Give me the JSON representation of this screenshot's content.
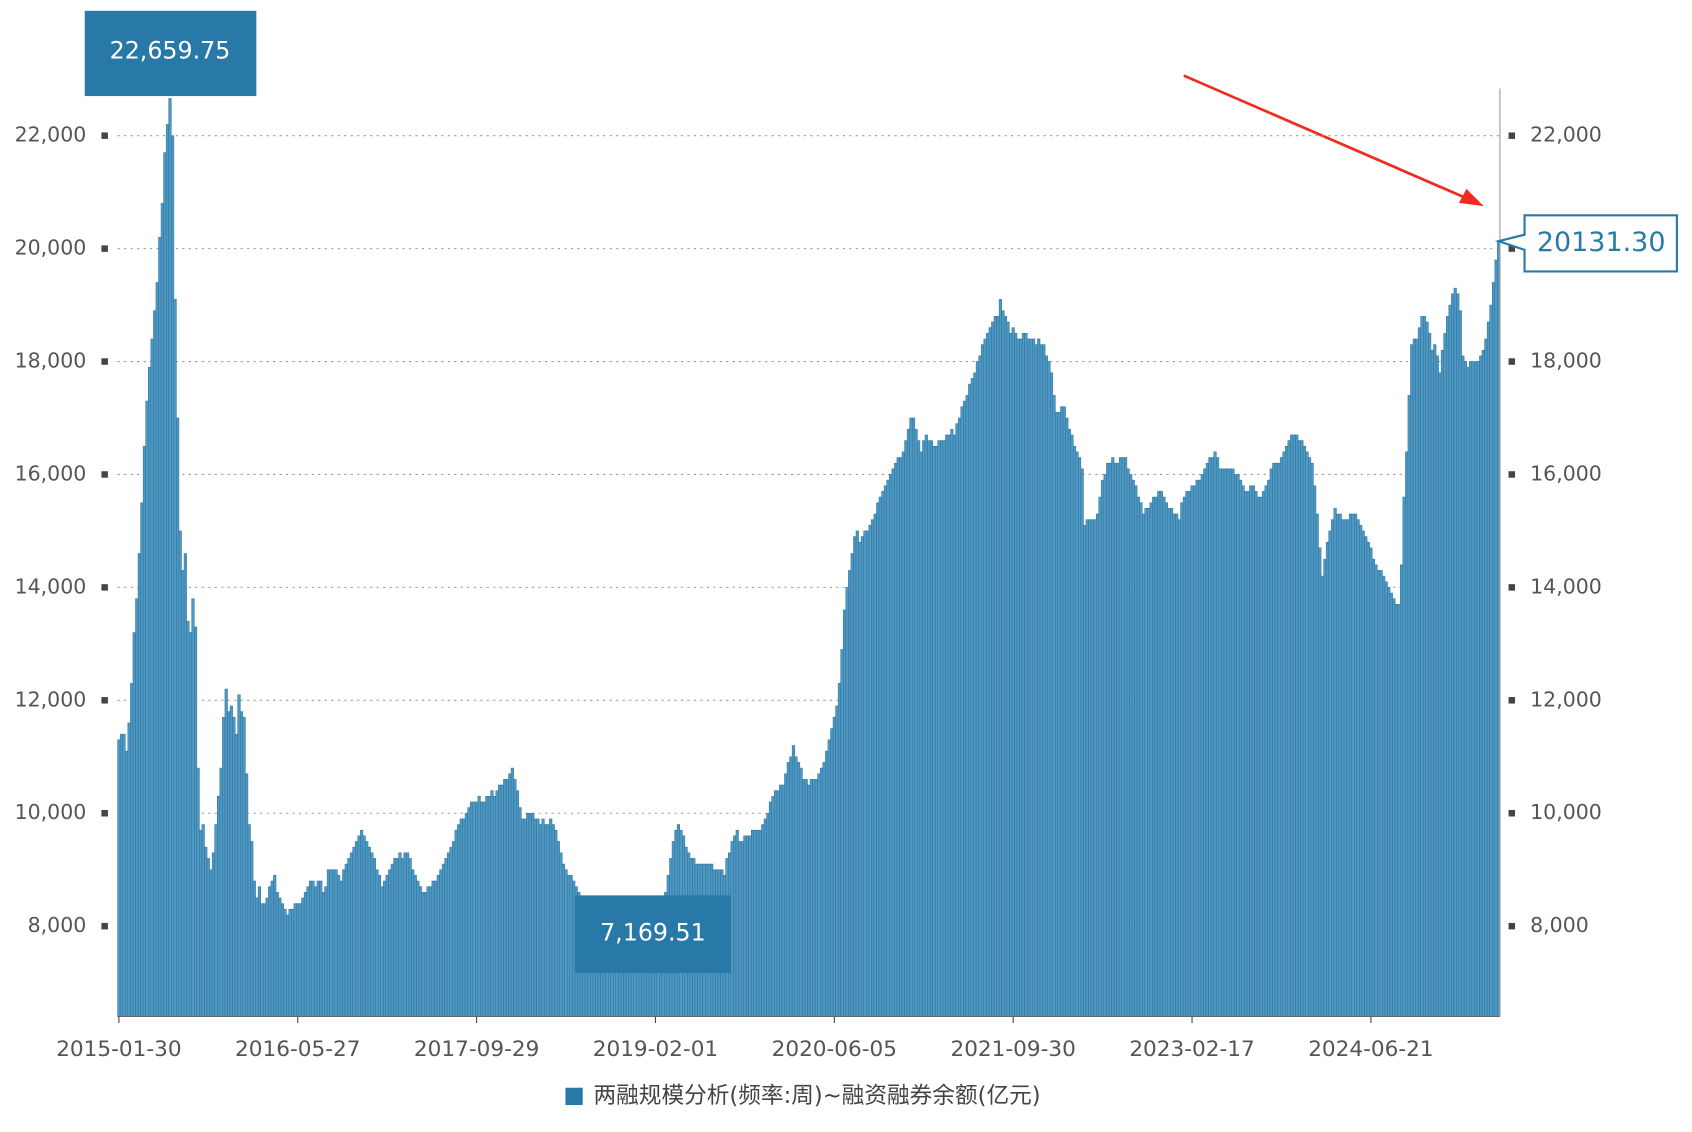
{
  "chart_data": {
    "type": "bar",
    "legend": "两融规模分析(频率:周)~融资融券余额(亿元)",
    "color": "#4f98c2",
    "ylim": [
      6400,
      23600
    ],
    "yticks": [
      {
        "value": 8000,
        "label": "8,000"
      },
      {
        "value": 10000,
        "label": "10,000"
      },
      {
        "value": 12000,
        "label": "12,000"
      },
      {
        "value": 14000,
        "label": "14,000"
      },
      {
        "value": 16000,
        "label": "16,000"
      },
      {
        "value": 18000,
        "label": "18,000"
      },
      {
        "value": 20000,
        "label": "20,000"
      },
      {
        "value": 22000,
        "label": "22,000"
      }
    ],
    "y2lim": [
      6400,
      23600
    ],
    "y2ticks": [
      {
        "value": 8000,
        "label": "8,000"
      },
      {
        "value": 10000,
        "label": "10,000"
      },
      {
        "value": 12000,
        "label": "12,000"
      },
      {
        "value": 14000,
        "label": "14,000"
      },
      {
        "value": 16000,
        "label": "16,000"
      },
      {
        "value": 18000,
        "label": "18,000"
      },
      {
        "value": 20000,
        "label": "20,000"
      },
      {
        "value": 22000,
        "label": "22,000"
      }
    ],
    "grid": true,
    "categories": [
      "2015-01-30",
      null,
      null,
      null,
      null,
      null,
      null,
      null,
      null,
      null,
      null,
      null,
      null,
      null,
      null,
      null,
      null,
      null,
      null,
      null,
      null,
      null,
      null,
      null,
      null,
      null,
      null,
      null,
      null,
      null,
      null,
      null,
      null,
      null,
      null,
      null,
      null,
      null,
      null,
      null,
      null,
      null,
      null,
      null,
      null,
      null,
      null,
      null,
      null,
      null,
      null,
      null,
      null,
      null,
      null,
      null,
      null,
      null,
      null,
      null,
      null,
      null,
      null,
      null,
      null,
      null,
      null,
      null,
      null,
      null,
      "2016-05-27",
      null,
      null,
      null,
      null,
      null,
      null,
      null,
      null,
      null,
      null,
      null,
      null,
      null,
      null,
      null,
      null,
      null,
      null,
      null,
      null,
      null,
      null,
      null,
      null,
      null,
      null,
      null,
      null,
      null,
      null,
      null,
      null,
      null,
      null,
      null,
      null,
      null,
      null,
      null,
      null,
      null,
      null,
      null,
      null,
      null,
      null,
      null,
      null,
      null,
      null,
      null,
      null,
      null,
      null,
      null,
      null,
      null,
      null,
      null,
      null,
      null,
      null,
      null,
      null,
      null,
      null,
      null,
      null,
      null,
      "2017-09-29",
      null,
      null,
      null,
      null,
      null,
      null,
      null,
      null,
      null,
      null,
      null,
      null,
      null,
      null,
      null,
      null,
      null,
      null,
      null,
      null,
      null,
      null,
      null,
      null,
      null,
      null,
      null,
      null,
      null,
      null,
      null,
      null,
      null,
      null,
      null,
      null,
      null,
      null,
      null,
      null,
      null,
      null,
      null,
      null,
      null,
      null,
      null,
      null,
      null,
      null,
      null,
      null,
      null,
      null,
      null,
      null,
      null,
      null,
      null,
      null,
      null,
      null,
      null,
      null,
      null,
      null,
      null,
      null,
      null,
      "2019-02-01",
      null,
      null,
      null,
      null,
      null,
      null,
      null,
      null,
      null,
      null,
      null,
      null,
      null,
      null,
      null,
      null,
      null,
      null,
      null,
      null,
      null,
      null,
      null,
      null,
      null,
      null,
      null,
      null,
      null,
      null,
      null,
      null,
      null,
      null,
      null,
      null,
      null,
      null,
      null,
      null,
      null,
      null,
      null,
      null,
      null,
      null,
      null,
      null,
      null,
      null,
      null,
      null,
      null,
      null,
      null,
      null,
      null,
      null,
      null,
      null,
      null,
      null,
      null,
      null,
      null,
      null,
      null,
      null,
      null,
      "2020-06-05",
      null,
      null,
      null,
      null,
      null,
      null,
      null,
      null,
      null,
      null,
      null,
      null,
      null,
      null,
      null,
      null,
      null,
      null,
      null,
      null,
      null,
      null,
      null,
      null,
      null,
      null,
      null,
      null,
      null,
      null,
      null,
      null,
      null,
      null,
      null,
      null,
      null,
      null,
      null,
      null,
      null,
      null,
      null,
      null,
      null,
      null,
      null,
      null,
      null,
      null,
      null,
      null,
      null,
      null,
      null,
      null,
      null,
      null,
      null,
      null,
      null,
      null,
      null,
      null,
      null,
      null,
      null,
      null,
      null,
      "2021-09-30",
      null,
      null,
      null,
      null,
      null,
      null,
      null,
      null,
      null,
      null,
      null,
      null,
      null,
      null,
      null,
      null,
      null,
      null,
      null,
      null,
      null,
      null,
      null,
      null,
      null,
      null,
      null,
      null,
      null,
      null,
      null,
      null,
      null,
      null,
      null,
      null,
      null,
      null,
      null,
      null,
      null,
      null,
      null,
      null,
      null,
      null,
      null,
      null,
      null,
      null,
      null,
      null,
      null,
      null,
      null,
      null,
      null,
      null,
      null,
      null,
      null,
      null,
      null,
      null,
      null,
      null,
      null,
      null,
      null,
      "2023-02-17",
      null,
      null,
      null,
      null,
      null,
      null,
      null,
      null,
      null,
      null,
      null,
      null,
      null,
      null,
      null,
      null,
      null,
      null,
      null,
      null,
      null,
      null,
      null,
      null,
      null,
      null,
      null,
      null,
      null,
      null,
      null,
      null,
      null,
      null,
      null,
      null,
      null,
      null,
      null,
      null,
      null,
      null,
      null,
      null,
      null,
      null,
      null,
      null,
      null,
      null,
      null,
      null,
      null,
      null,
      null,
      null,
      null,
      null,
      null,
      null,
      null,
      null,
      null,
      null,
      null,
      null,
      null,
      null,
      null,
      "2024-06-21",
      null,
      null,
      null,
      null,
      null,
      null,
      null,
      null,
      null,
      null,
      null,
      null,
      null,
      null,
      null,
      null,
      null,
      null,
      null,
      null,
      null,
      null,
      null,
      null,
      null,
      null,
      null,
      null,
      null,
      null,
      null,
      null,
      null,
      null,
      null,
      null,
      null,
      null,
      null,
      null,
      null,
      null,
      null,
      null,
      null,
      null,
      null,
      null,
      null,
      null
    ],
    "values": [
      11300,
      11400,
      11400,
      11100,
      11600,
      12300,
      13200,
      13800,
      14600,
      15500,
      16500,
      17300,
      17900,
      18400,
      18900,
      19400,
      20200,
      20800,
      21700,
      22200,
      22659.75,
      22000,
      19100,
      17000,
      15000,
      14300,
      14600,
      13400,
      13200,
      13800,
      13300,
      10800,
      9700,
      9800,
      9400,
      9200,
      9000,
      9300,
      9800,
      10300,
      10800,
      11700,
      12200,
      11800,
      11900,
      11700,
      11400,
      12100,
      11800,
      11700,
      10700,
      9800,
      9500,
      8800,
      8500,
      8700,
      8400,
      8400,
      8500,
      8700,
      8800,
      8900,
      8600,
      8500,
      8400,
      8300,
      8200,
      8300,
      8300,
      8400,
      8400,
      8400,
      8500,
      8600,
      8700,
      8800,
      8800,
      8700,
      8800,
      8800,
      8600,
      8700,
      9000,
      9000,
      9000,
      9000,
      8900,
      8800,
      9000,
      9100,
      9200,
      9300,
      9400,
      9500,
      9600,
      9700,
      9600,
      9500,
      9400,
      9300,
      9200,
      9000,
      8900,
      8700,
      8800,
      8900,
      9000,
      9100,
      9200,
      9200,
      9300,
      9200,
      9300,
      9300,
      9200,
      9000,
      8900,
      8800,
      8700,
      8600,
      8600,
      8700,
      8700,
      8800,
      8800,
      8900,
      9000,
      9100,
      9200,
      9300,
      9400,
      9500,
      9700,
      9800,
      9900,
      9900,
      10000,
      10100,
      10200,
      10200,
      10200,
      10300,
      10200,
      10200,
      10300,
      10300,
      10400,
      10300,
      10400,
      10500,
      10500,
      10600,
      10600,
      10700,
      10800,
      10600,
      10400,
      10100,
      9900,
      9900,
      10000,
      10000,
      10000,
      9900,
      9900,
      9800,
      9900,
      9800,
      9800,
      9900,
      9800,
      9700,
      9500,
      9300,
      9100,
      9000,
      8900,
      8900,
      8800,
      8700,
      8600,
      8500,
      8400,
      8300,
      8200,
      8100,
      8000,
      7900,
      7800,
      7700,
      7700,
      7600,
      7600,
      7500,
      7500,
      7500,
      7400,
      7400,
      7300,
      7300,
      7400,
      7300,
      7300,
      7300,
      7200,
      7300,
      7300,
      7200,
      7200,
      7169.51,
      7400,
      7700,
      8000,
      8300,
      8600,
      8900,
      9200,
      9500,
      9700,
      9800,
      9700,
      9600,
      9400,
      9300,
      9200,
      9200,
      9100,
      9100,
      9100,
      9100,
      9100,
      9100,
      9100,
      9000,
      9000,
      9000,
      9000,
      8900,
      9200,
      9300,
      9500,
      9600,
      9700,
      9500,
      9500,
      9600,
      9600,
      9600,
      9700,
      9700,
      9700,
      9700,
      9800,
      9900,
      10000,
      10200,
      10300,
      10400,
      10400,
      10500,
      10500,
      10700,
      10900,
      11000,
      11200,
      11000,
      10900,
      10800,
      10600,
      10600,
      10500,
      10600,
      10600,
      10600,
      10700,
      10800,
      10900,
      11100,
      11300,
      11500,
      11700,
      11900,
      12300,
      12900,
      13600,
      14000,
      14300,
      14600,
      14900,
      15000,
      14800,
      14900,
      15000,
      15000,
      15100,
      15200,
      15300,
      15500,
      15600,
      15700,
      15800,
      15900,
      16000,
      16100,
      16200,
      16300,
      16300,
      16400,
      16600,
      16800,
      17000,
      17000,
      16800,
      16600,
      16400,
      16600,
      16700,
      16600,
      16600,
      16500,
      16500,
      16600,
      16600,
      16600,
      16700,
      16700,
      16800,
      16700,
      16900,
      17000,
      17200,
      17300,
      17400,
      17600,
      17700,
      17800,
      18000,
      18100,
      18300,
      18400,
      18500,
      18600,
      18700,
      18800,
      18800,
      19100,
      18900,
      18800,
      18700,
      18500,
      18600,
      18500,
      18400,
      18400,
      18500,
      18500,
      18400,
      18400,
      18400,
      18300,
      18400,
      18300,
      18300,
      18100,
      18000,
      17800,
      17400,
      17100,
      17100,
      17200,
      17200,
      17000,
      16800,
      16700,
      16500,
      16400,
      16300,
      16100,
      15100,
      15200,
      15200,
      15200,
      15200,
      15300,
      15600,
      15900,
      16000,
      16200,
      16200,
      16300,
      16200,
      16200,
      16300,
      16300,
      16300,
      16100,
      16000,
      15900,
      15800,
      15600,
      15500,
      15300,
      15400,
      15400,
      15500,
      15600,
      15600,
      15700,
      15700,
      15600,
      15500,
      15400,
      15400,
      15300,
      15300,
      15200,
      15500,
      15600,
      15700,
      15700,
      15800,
      15800,
      15900,
      15900,
      16000,
      16100,
      16200,
      16300,
      16300,
      16400,
      16300,
      16100,
      16100,
      16100,
      16100,
      16100,
      16100,
      16000,
      16000,
      15900,
      15800,
      15700,
      15700,
      15800,
      15800,
      15700,
      15600,
      15600,
      15700,
      15800,
      15900,
      16100,
      16200,
      16200,
      16200,
      16300,
      16400,
      16500,
      16600,
      16700,
      16700,
      16700,
      16600,
      16600,
      16500,
      16400,
      16300,
      16200,
      15800,
      15300,
      14700,
      14200,
      14500,
      14800,
      15000,
      15200,
      15400,
      15300,
      15300,
      15200,
      15200,
      15200,
      15300,
      15300,
      15300,
      15200,
      15100,
      15000,
      14900,
      14800,
      14700,
      14500,
      14400,
      14300,
      14300,
      14200,
      14100,
      14000,
      13900,
      13800,
      13700,
      13700,
      14400,
      15600,
      16400,
      17400,
      18300,
      18400,
      18400,
      18600,
      18800,
      18800,
      18700,
      18500,
      18200,
      18300,
      18100,
      17800,
      18200,
      18500,
      18800,
      19000,
      19200,
      19300,
      19200,
      18900,
      18100,
      18000,
      17900,
      18000,
      18000,
      18000,
      18000,
      18100,
      18200,
      18400,
      18700,
      19000,
      19400,
      19800,
      20131.3
    ],
    "value_labels_at": null,
    "value_labels": {
      "20": "22,659.75",
      "209": "7,169.51",
      "540": "20131.30"
    }
  }
}
